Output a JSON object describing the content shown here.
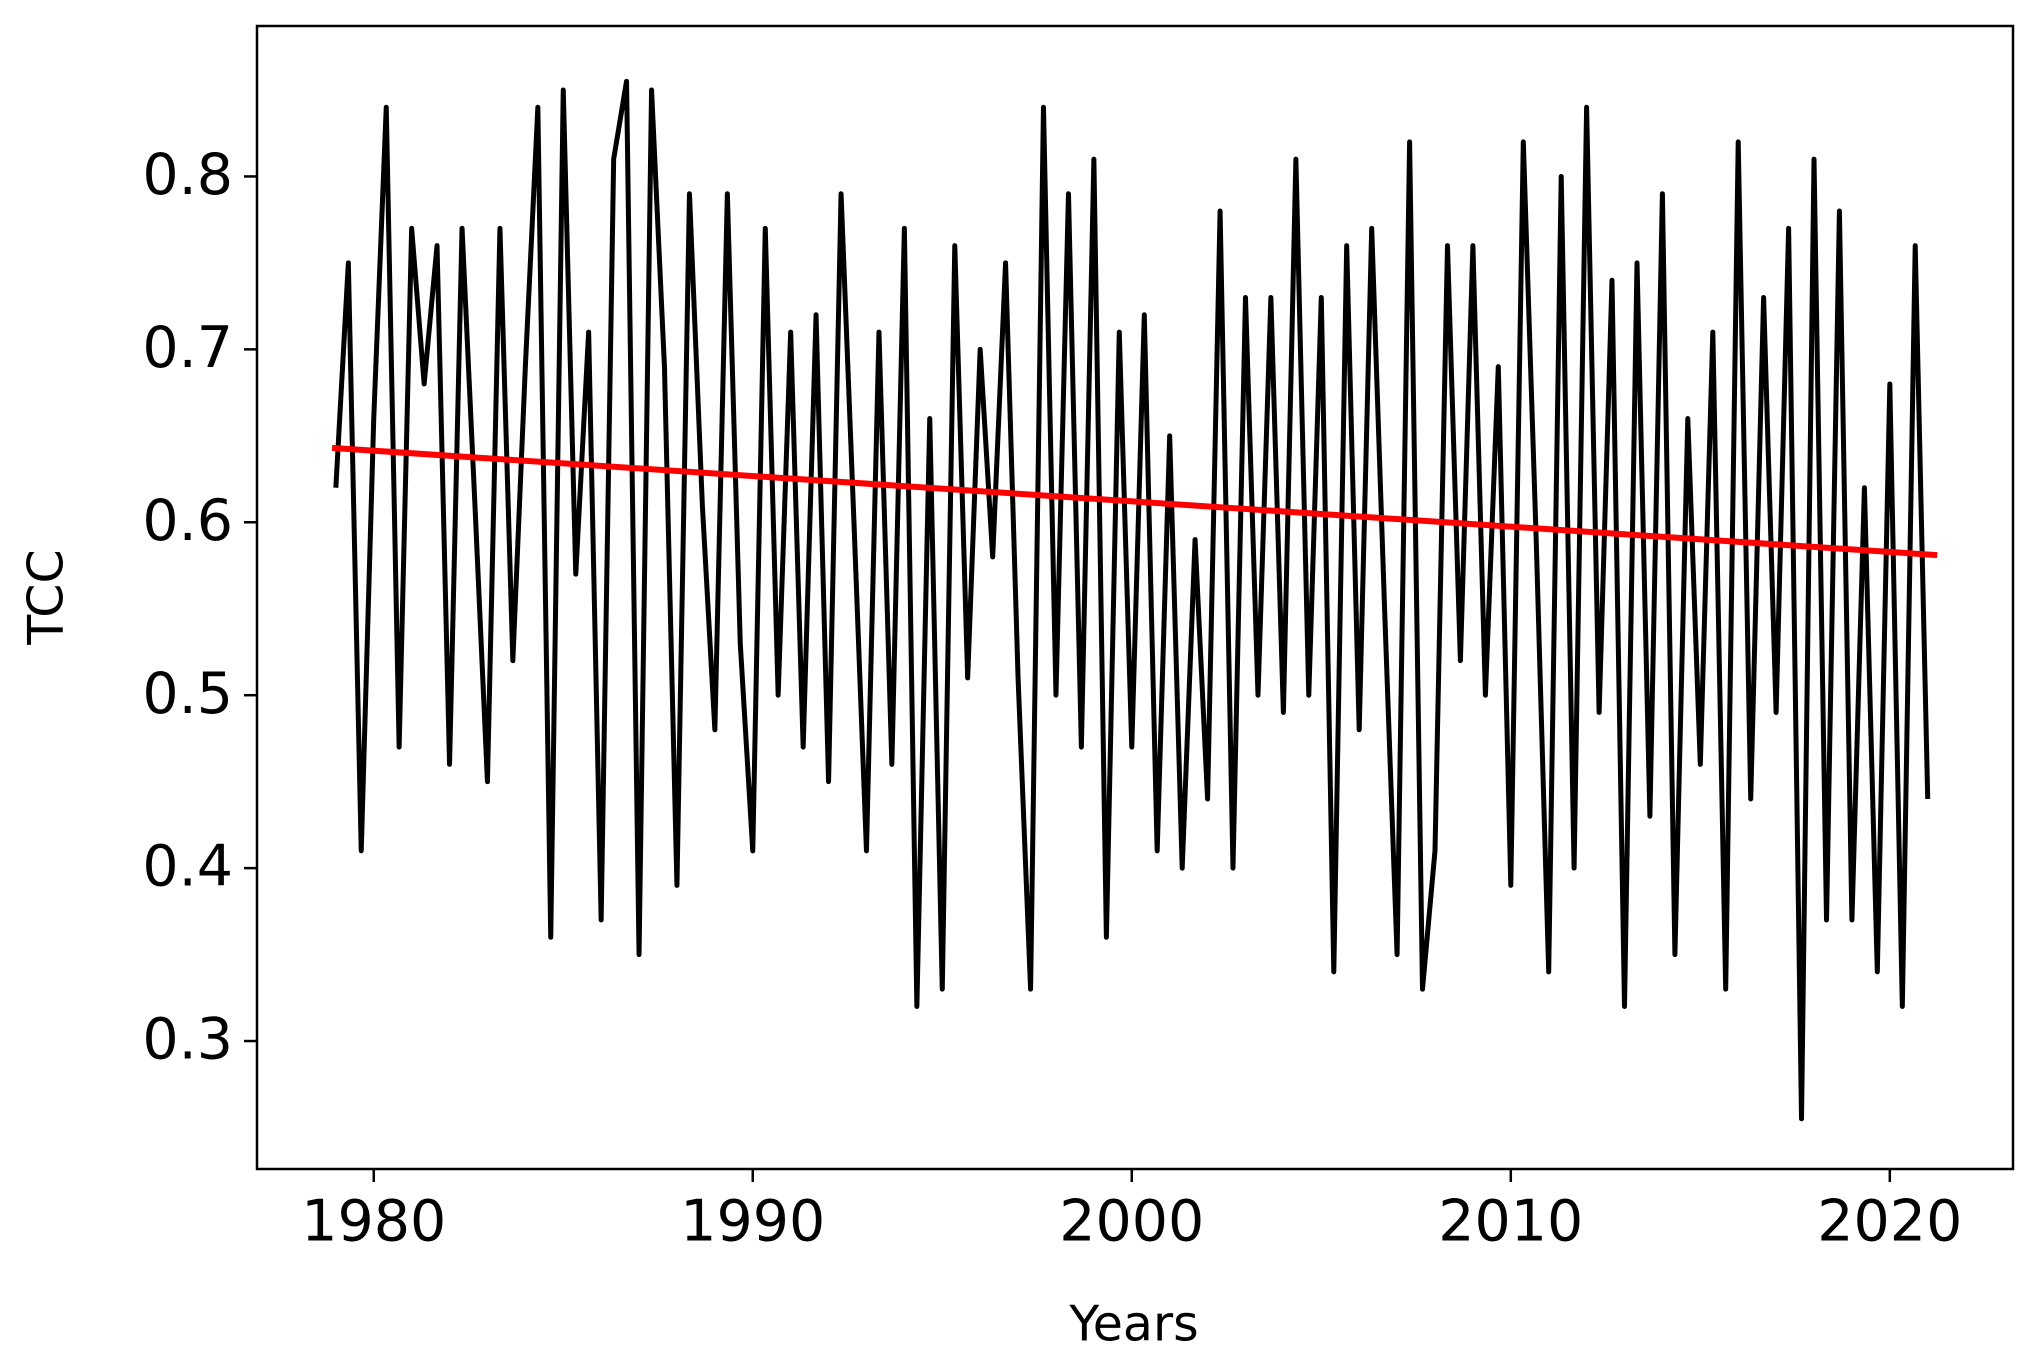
{
  "chart_data": {
    "type": "line",
    "xlabel": "Years",
    "ylabel": "TCC",
    "x": [
      1979.0,
      1979.33,
      1979.67,
      1980.0,
      1980.33,
      1980.67,
      1981.0,
      1981.33,
      1981.67,
      1982.0,
      1982.33,
      1982.67,
      1983.0,
      1983.33,
      1983.67,
      1984.0,
      1984.33,
      1984.67,
      1985.0,
      1985.33,
      1985.67,
      1986.0,
      1986.33,
      1986.67,
      1987.0,
      1987.33,
      1987.67,
      1988.0,
      1988.33,
      1988.67,
      1989.0,
      1989.33,
      1989.67,
      1990.0,
      1990.33,
      1990.67,
      1991.0,
      1991.33,
      1991.67,
      1992.0,
      1992.33,
      1992.67,
      1993.0,
      1993.33,
      1993.67,
      1994.0,
      1994.33,
      1994.67,
      1995.0,
      1995.33,
      1995.67,
      1996.0,
      1996.33,
      1996.67,
      1997.0,
      1997.33,
      1997.67,
      1998.0,
      1998.33,
      1998.67,
      1999.0,
      1999.33,
      1999.67,
      2000.0,
      2000.33,
      2000.67,
      2001.0,
      2001.33,
      2001.67,
      2002.0,
      2002.33,
      2002.67,
      2003.0,
      2003.33,
      2003.67,
      2004.0,
      2004.33,
      2004.67,
      2005.0,
      2005.33,
      2005.67,
      2006.0,
      2006.33,
      2006.67,
      2007.0,
      2007.33,
      2007.67,
      2008.0,
      2008.33,
      2008.67,
      2009.0,
      2009.33,
      2009.67,
      2010.0,
      2010.33,
      2010.67,
      2011.0,
      2011.33,
      2011.67,
      2012.0,
      2012.33,
      2012.67,
      2013.0,
      2013.33,
      2013.67,
      2014.0,
      2014.33,
      2014.67,
      2015.0,
      2015.33,
      2015.67,
      2016.0,
      2016.33,
      2016.67,
      2017.0,
      2017.33,
      2017.67,
      2018.0,
      2018.33,
      2018.67,
      2019.0,
      2019.33,
      2019.67,
      2020.0,
      2020.33,
      2020.67,
      2021.0
    ],
    "series": [
      {
        "color": "#000000",
        "values": [
          0.62,
          0.75,
          0.41,
          0.66,
          0.84,
          0.47,
          0.77,
          0.68,
          0.76,
          0.46,
          0.77,
          0.61,
          0.45,
          0.77,
          0.52,
          0.69,
          0.84,
          0.36,
          0.85,
          0.57,
          0.71,
          0.37,
          0.81,
          0.855,
          0.35,
          0.85,
          0.69,
          0.39,
          0.79,
          0.61,
          0.48,
          0.79,
          0.53,
          0.41,
          0.77,
          0.5,
          0.71,
          0.47,
          0.72,
          0.45,
          0.79,
          0.6,
          0.41,
          0.71,
          0.46,
          0.77,
          0.32,
          0.66,
          0.33,
          0.76,
          0.51,
          0.7,
          0.58,
          0.75,
          0.51,
          0.33,
          0.84,
          0.5,
          0.79,
          0.47,
          0.81,
          0.36,
          0.71,
          0.47,
          0.72,
          0.41,
          0.65,
          0.4,
          0.59,
          0.44,
          0.78,
          0.4,
          0.73,
          0.5,
          0.73,
          0.49,
          0.81,
          0.5,
          0.73,
          0.34,
          0.76,
          0.48,
          0.77,
          0.55,
          0.35,
          0.82,
          0.33,
          0.41,
          0.76,
          0.52,
          0.76,
          0.5,
          0.69,
          0.39,
          0.82,
          0.59,
          0.34,
          0.8,
          0.4,
          0.84,
          0.49,
          0.74,
          0.32,
          0.75,
          0.43,
          0.79,
          0.35,
          0.66,
          0.46,
          0.71,
          0.33,
          0.82,
          0.44,
          0.73,
          0.49,
          0.77,
          0.255,
          0.81,
          0.37,
          0.78,
          0.37,
          0.62,
          0.34,
          0.68,
          0.32,
          0.76,
          0.44
        ]
      },
      {
        "color": "#ff0000",
        "x": [
          1978.9,
          2021.25
        ],
        "values": [
          0.643,
          0.581
        ]
      }
    ],
    "xlim": [
      1976.92,
      2023.25
    ],
    "xticks": [
      1980,
      1990,
      2000,
      2010,
      2020
    ],
    "ylim": [
      0.226,
      0.887
    ],
    "yticks": [
      0.3,
      0.4,
      0.5,
      0.6,
      0.7,
      0.8
    ]
  }
}
